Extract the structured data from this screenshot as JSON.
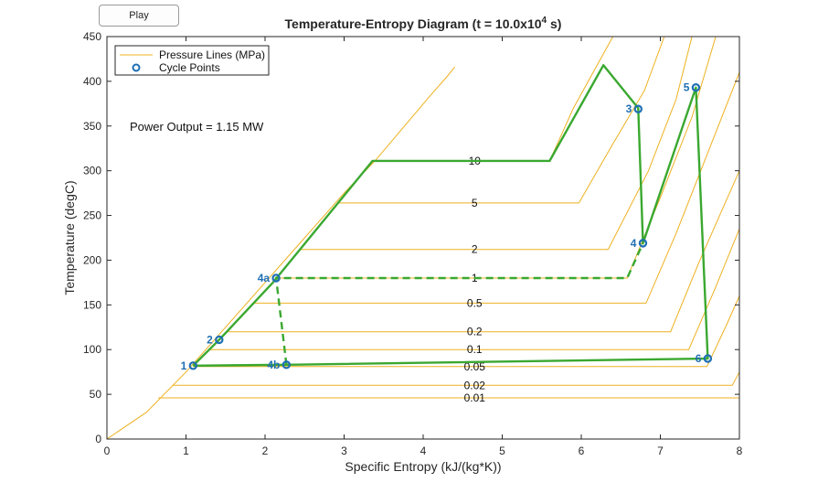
{
  "controls": {
    "play_label": "Play"
  },
  "colors": {
    "pressure": "#edb120",
    "cycle": "#3aa830",
    "points": "#1f6fb4",
    "axes": "#262626"
  },
  "chart_data": {
    "type": "line",
    "title_main": "Temperature-Entropy  Diagram  (t  =  10.0x10",
    "title_exp": "4",
    "title_end": "  s)",
    "xlabel": "Specific Entropy (kJ/(kg*K))",
    "ylabel": "Temperature (degC)",
    "xlim": [
      0,
      8
    ],
    "ylim": [
      0,
      450
    ],
    "xticks": [
      0,
      1,
      2,
      3,
      4,
      5,
      6,
      7,
      8
    ],
    "yticks": [
      0,
      50,
      100,
      150,
      200,
      250,
      300,
      350,
      400,
      450
    ],
    "grid": false,
    "legend": {
      "placement": "top-left",
      "entries": [
        "Pressure Lines (MPa)",
        "Cycle Points"
      ]
    },
    "annotation": "Power Output = 1.15 MW",
    "saturated_liquid": [
      [
        0,
        0
      ],
      [
        0.5,
        30
      ],
      [
        1,
        75
      ],
      [
        1.5,
        125
      ],
      [
        2,
        175
      ],
      [
        2.5,
        225
      ],
      [
        3,
        275
      ],
      [
        3.4,
        312
      ],
      [
        4.1,
        385
      ],
      [
        4.3,
        405
      ],
      [
        4.4,
        416
      ]
    ],
    "pressure_lines": [
      {
        "label": "10",
        "label_at": [
          4.35,
          311
        ],
        "points": [
          [
            3.36,
            311
          ],
          [
            5.6,
            311
          ],
          [
            5.9,
            370
          ],
          [
            6.4,
            450
          ]
        ]
      },
      {
        "label": "5",
        "label_at": [
          4.35,
          264
        ],
        "points": [
          [
            2.92,
            264
          ],
          [
            5.97,
            264
          ],
          [
            6.4,
            330
          ],
          [
            6.8,
            390
          ],
          [
            7.05,
            450
          ]
        ]
      },
      {
        "label": "2",
        "label_at": [
          4.35,
          212
        ],
        "points": [
          [
            2.45,
            212
          ],
          [
            6.34,
            212
          ],
          [
            6.85,
            300
          ],
          [
            7.2,
            380
          ],
          [
            7.4,
            450
          ]
        ]
      },
      {
        "label": "1",
        "label_at": [
          4.35,
          180
        ],
        "points": [
          [
            2.14,
            180
          ],
          [
            6.58,
            180
          ],
          [
            7.0,
            270
          ],
          [
            7.4,
            360
          ],
          [
            7.7,
            450
          ]
        ]
      },
      {
        "label": "0.5",
        "label_at": [
          4.35,
          152
        ],
        "points": [
          [
            1.86,
            152
          ],
          [
            6.82,
            152
          ],
          [
            7.2,
            230
          ],
          [
            7.6,
            320
          ],
          [
            8.0,
            410
          ]
        ]
      },
      {
        "label": "0.2",
        "label_at": [
          4.35,
          120
        ],
        "points": [
          [
            1.53,
            120
          ],
          [
            7.13,
            120
          ],
          [
            7.5,
            200
          ],
          [
            8.0,
            300
          ]
        ]
      },
      {
        "label": "0.1",
        "label_at": [
          4.35,
          100
        ],
        "points": [
          [
            1.3,
            100
          ],
          [
            7.36,
            100
          ],
          [
            7.7,
            170
          ],
          [
            8.0,
            235
          ]
        ]
      },
      {
        "label": "0.05",
        "label_at": [
          4.35,
          81
        ],
        "points": [
          [
            1.09,
            81
          ],
          [
            7.59,
            81
          ],
          [
            7.85,
            130
          ],
          [
            8.0,
            160
          ]
        ]
      },
      {
        "label": "0.02",
        "label_at": [
          4.35,
          60
        ],
        "points": [
          [
            0.83,
            60
          ],
          [
            7.91,
            60
          ],
          [
            8.0,
            75
          ]
        ]
      },
      {
        "label": "0.01",
        "label_at": [
          4.35,
          46
        ],
        "points": [
          [
            0.65,
            46
          ],
          [
            8.0,
            46
          ]
        ]
      }
    ],
    "cycle_path": [
      [
        1.09,
        82
      ],
      [
        1.42,
        111
      ],
      [
        2.1,
        175
      ],
      [
        3.36,
        311
      ],
      [
        5.6,
        311
      ],
      [
        6.28,
        418
      ],
      [
        6.72,
        370
      ],
      [
        6.78,
        219
      ],
      [
        7.45,
        393
      ],
      [
        7.6,
        90
      ],
      [
        2.27,
        83
      ],
      [
        1.09,
        82
      ]
    ],
    "dashed_path": [
      [
        2.27,
        83
      ],
      [
        2.14,
        180
      ],
      [
        6.58,
        180
      ],
      [
        6.78,
        219
      ]
    ],
    "cycle_points": [
      {
        "label": "1",
        "x": 1.09,
        "y": 82,
        "pos": "left"
      },
      {
        "label": "2",
        "x": 1.42,
        "y": 111,
        "pos": "left"
      },
      {
        "label": "3",
        "x": 6.72,
        "y": 369,
        "pos": "left"
      },
      {
        "label": "4",
        "x": 6.78,
        "y": 219,
        "pos": "left"
      },
      {
        "label": "4a",
        "x": 2.14,
        "y": 180,
        "pos": "left"
      },
      {
        "label": "4b",
        "x": 2.27,
        "y": 83,
        "pos": "left"
      },
      {
        "label": "5",
        "x": 7.45,
        "y": 393,
        "pos": "left"
      },
      {
        "label": "6",
        "x": 7.6,
        "y": 90,
        "pos": "left"
      }
    ]
  }
}
